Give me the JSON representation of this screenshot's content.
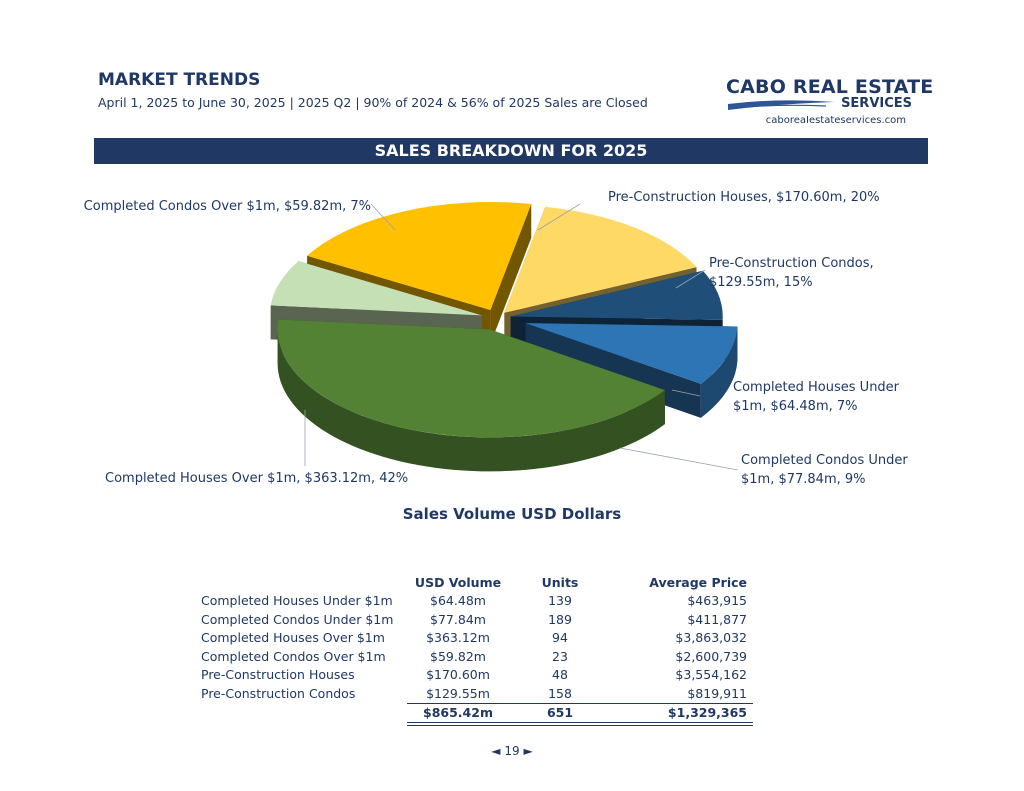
{
  "header": {
    "title": "MARKET TRENDS",
    "subtitle": "April 1, 2025 to June 30, 2025 | 2025 Q2 | 90% of 2024 & 56% of 2025 Sales are Closed"
  },
  "logo": {
    "main": "CABO REAL ESTATE",
    "sub": "SERVICES",
    "url": "caboreaIestateservices.com"
  },
  "banner": "SALES BREAKDOWN FOR 2025",
  "chart_data": {
    "type": "pie",
    "title": "SALES BREAKDOWN FOR 2025",
    "caption": "Sales Volume USD Dollars",
    "slices": [
      {
        "name": "Completed Houses Under $1m",
        "value": 64.48,
        "percent": 7,
        "label": [
          "Completed Houses Under",
          "$1m, $64.48m, 7%"
        ],
        "color": "#1f4e79"
      },
      {
        "name": "Completed Condos Under $1m",
        "value": 77.84,
        "percent": 9,
        "label": [
          "Completed Condos Under",
          "$1m, $77.84m, 9%"
        ],
        "color": "#2e75b6"
      },
      {
        "name": "Completed Houses Over $1m",
        "value": 363.12,
        "percent": 42,
        "label": [
          "Completed Houses Over $1m, $363.12m, 42%"
        ],
        "color": "#548235"
      },
      {
        "name": "Completed Condos Over $1m",
        "value": 59.82,
        "percent": 7,
        "label": [
          "Completed Condos Over $1m, $59.82m, 7%"
        ],
        "color": "#c5e0b4"
      },
      {
        "name": "Pre-Construction Houses",
        "value": 170.6,
        "percent": 20,
        "label": [
          "Pre-Construction Houses, $170.60m, 20%"
        ],
        "color": "#ffc000"
      },
      {
        "name": "Pre-Construction Condos",
        "value": 129.55,
        "percent": 15,
        "label": [
          "Pre-Construction Condos,",
          "$129.55m, 15%"
        ],
        "color": "#ffd966"
      }
    ]
  },
  "table": {
    "headers": [
      "",
      "USD Volume",
      "Units",
      "Average Price"
    ],
    "rows": [
      [
        "Completed Houses Under $1m",
        "$64.48m",
        "139",
        "$463,915"
      ],
      [
        "Completed Condos Under $1m",
        "$77.84m",
        "189",
        "$411,877"
      ],
      [
        "Completed Houses Over $1m",
        "$363.12m",
        "94",
        "$3,863,032"
      ],
      [
        "Completed Condos Over $1m",
        "$59.82m",
        "23",
        "$2,600,739"
      ],
      [
        "Pre-Construction Houses",
        "$170.60m",
        "48",
        "$3,554,162"
      ],
      [
        "Pre-Construction Condos",
        "$129.55m",
        "158",
        "$819,911"
      ]
    ],
    "total": [
      "",
      "$865.42m",
      "651",
      "$1,329,365"
    ]
  },
  "pager": {
    "prev": "◄",
    "page": "19",
    "next": "►"
  }
}
